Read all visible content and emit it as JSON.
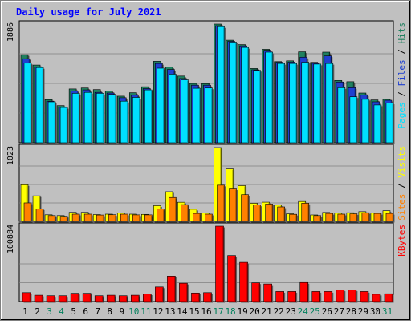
{
  "chart_data": {
    "type": "bar",
    "title": "Daily usage for July 2021",
    "categories": [
      "1",
      "2",
      "3",
      "4",
      "5",
      "6",
      "7",
      "8",
      "9",
      "10",
      "11",
      "12",
      "13",
      "14",
      "15",
      "16",
      "17",
      "18",
      "19",
      "20",
      "21",
      "22",
      "23",
      "24",
      "25",
      "26",
      "27",
      "28",
      "29",
      "30",
      "31"
    ],
    "weekend_days": [
      "3",
      "4",
      "10",
      "11",
      "17",
      "18",
      "24",
      "25",
      "31"
    ],
    "grid": true,
    "panels": [
      {
        "id": "hits_files_pages",
        "max_label": "1886",
        "ymax": 1886,
        "series": [
          {
            "name": "Hits",
            "color": "#208060",
            "values": [
              1400,
              1235,
              685,
              590,
              855,
              870,
              845,
              820,
              740,
              795,
              890,
              1295,
              1205,
              1060,
              942,
              940,
              1886,
              1630,
              1560,
              1180,
              1485,
              1290,
              1302,
              1445,
              1278,
              1440,
              990,
              970,
              790,
              680,
              690
            ]
          },
          {
            "name": "Files",
            "color": "#2040d0",
            "values": [
              1335,
              1205,
              660,
              570,
              820,
              840,
              800,
              790,
              715,
              755,
              860,
              1260,
              1165,
              1020,
              915,
              915,
              1860,
              1612,
              1540,
              1160,
              1470,
              1280,
              1282,
              1360,
              1262,
              1380,
              965,
              875,
              760,
              650,
              675
            ]
          },
          {
            "name": "Pages",
            "color": "#00e0ff",
            "values": [
              1265,
              1195,
              650,
              560,
              785,
              800,
              785,
              768,
              660,
              720,
              840,
              1185,
              1090,
              1000,
              865,
              870,
              1845,
              1600,
              1515,
              1150,
              1440,
              1260,
              1260,
              1280,
              1250,
              1260,
              875,
              730,
              690,
              600,
              630
            ]
          }
        ],
        "axis_labels": [
          {
            "text": "Pages",
            "color": "#00e0ff"
          },
          {
            "text": " / ",
            "color": "#000000"
          },
          {
            "text": "Files",
            "color": "#2040d0"
          },
          {
            "text": " / ",
            "color": "#000000"
          },
          {
            "text": "Hits",
            "color": "#208060"
          }
        ]
      },
      {
        "id": "visits_sites",
        "max_label": "1023",
        "ymax": 1023,
        "series": [
          {
            "name": "Visits",
            "color": "#ffff00",
            "values": [
              508,
              354,
              91,
              80,
              125,
              125,
              94,
              100,
              115,
              100,
              97,
              217,
              412,
              265,
              168,
              115,
              1023,
              727,
              495,
              251,
              266,
              225,
              105,
              276,
              89,
              124,
              114,
              120,
              135,
              119,
              148
            ]
          },
          {
            "name": "Sites",
            "color": "#ff8000",
            "values": [
              256,
              174,
              80,
              70,
              100,
              100,
              88,
              92,
              100,
              90,
              90,
              170,
              331,
              232,
              110,
              100,
              502,
              450,
              370,
              226,
              240,
              200,
              98,
              252,
              80,
              110,
              100,
              105,
              120,
              110,
              110
            ]
          }
        ],
        "axis_labels": [
          {
            "text": "Sites",
            "color": "#ff8000"
          },
          {
            "text": " / ",
            "color": "#000000"
          },
          {
            "text": "Visits",
            "color": "#ffff00"
          }
        ]
      },
      {
        "id": "kbytes",
        "max_label": "100884",
        "ymax": 100884,
        "series": [
          {
            "name": "KBytes",
            "color": "#ff0000",
            "values": [
              12000,
              8500,
              7800,
              7800,
              11100,
              11100,
              7800,
              8500,
              7800,
              8500,
              10200,
              19500,
              34000,
              24500,
              11500,
              12000,
              100884,
              61500,
              52500,
              25000,
              23500,
              13500,
              13500,
              25500,
              13500,
              13500,
              15500,
              15500,
              13500,
              9800,
              10500
            ]
          }
        ],
        "axis_labels": [
          {
            "text": "KBytes",
            "color": "#ff0000"
          }
        ]
      }
    ]
  },
  "colors": {
    "title": "#0000ff",
    "background": "#c0c0c0",
    "weekday_label": "#000000",
    "weekend_label": "#00805c"
  }
}
